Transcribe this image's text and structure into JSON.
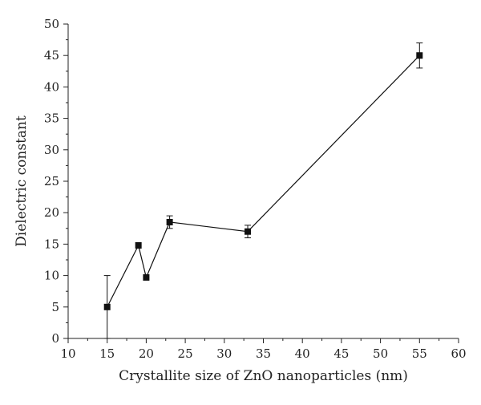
{
  "chart_data": {
    "type": "scatter",
    "title": "",
    "xlabel": "Crystallite size of ZnO nanoparticles (nm)",
    "ylabel": "Dielectric constant",
    "xlim": [
      10,
      60
    ],
    "ylim": [
      0,
      50
    ],
    "xticks": [
      10,
      15,
      20,
      25,
      30,
      35,
      40,
      45,
      50,
      55,
      60
    ],
    "yticks": [
      0,
      5,
      10,
      15,
      20,
      25,
      30,
      35,
      40,
      45,
      50
    ],
    "grid": false,
    "legend": "none",
    "marker": "square",
    "connected": true,
    "points": [
      {
        "x": 15,
        "y": 5.0,
        "err": 5.0
      },
      {
        "x": 19,
        "y": 14.8,
        "err": 0
      },
      {
        "x": 20,
        "y": 9.7,
        "err": 0
      },
      {
        "x": 23,
        "y": 18.5,
        "err": 1.0
      },
      {
        "x": 33,
        "y": 17.0,
        "err": 1.0
      },
      {
        "x": 55,
        "y": 45.0,
        "err": 2.0
      }
    ]
  }
}
